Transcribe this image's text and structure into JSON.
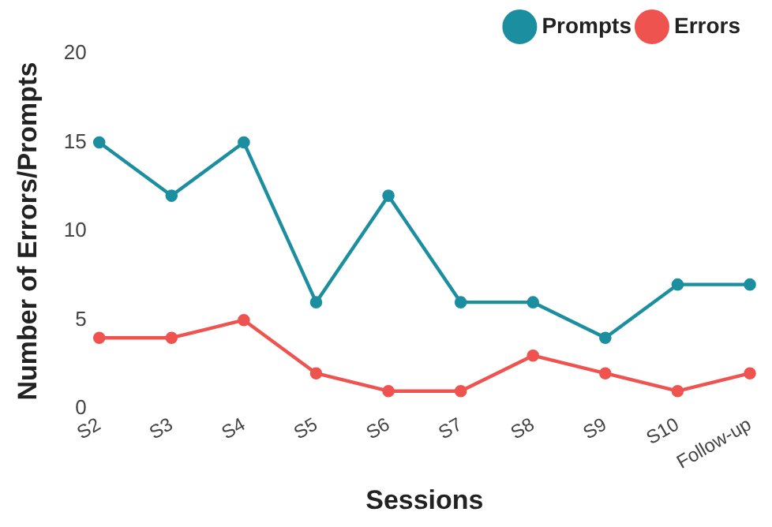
{
  "chart_data": {
    "type": "line",
    "xlabel": "Sessions",
    "ylabel": "Number of Errors/Prompts",
    "categories": [
      "S2",
      "S3",
      "S4",
      "S5",
      "S6",
      "S7",
      "S8",
      "S9",
      "S10",
      "Follow-up"
    ],
    "series": [
      {
        "name": "Prompts",
        "color": "#1b8ea0",
        "values": [
          15,
          12,
          15,
          6,
          12,
          6,
          6,
          4,
          7,
          7
        ]
      },
      {
        "name": "Errors",
        "color": "#ef5350",
        "values": [
          4,
          4,
          5,
          2,
          1,
          1,
          3,
          2,
          1,
          2
        ]
      }
    ],
    "ylim": [
      0,
      20
    ],
    "yticks": [
      0,
      5,
      10,
      15,
      20
    ],
    "grid": false,
    "legend": "top right",
    "marker": "circle",
    "line_style": "solid"
  }
}
